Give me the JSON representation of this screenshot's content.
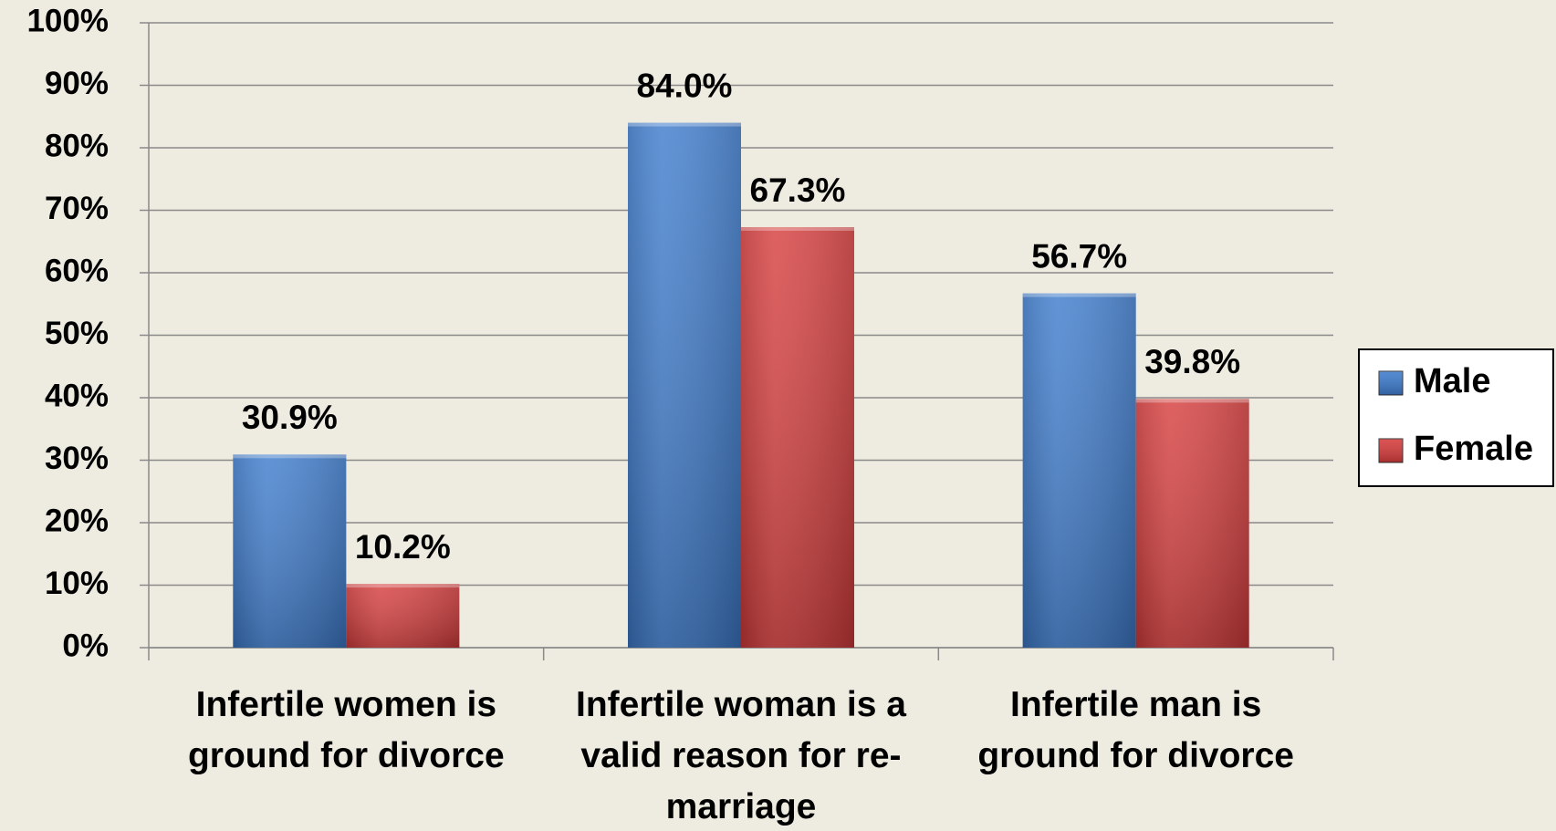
{
  "chart_data": {
    "type": "bar",
    "categories": [
      "Infertile women is ground for divorce",
      "Infertile woman is a valid reason for re-marriage",
      "Infertile man is ground for divorce"
    ],
    "series": [
      {
        "name": "Male",
        "color": "#3d7bcc",
        "values": [
          30.9,
          84.0,
          56.7
        ],
        "value_labels": [
          "30.9%",
          "84.0%",
          "56.7%"
        ]
      },
      {
        "name": "Female",
        "color": "#d63c3c",
        "values": [
          10.2,
          67.3,
          39.8
        ],
        "value_labels": [
          "10.2%",
          "67.3%",
          "39.8%"
        ]
      }
    ],
    "ylim": [
      0,
      100
    ],
    "yticks": [
      {
        "value": 0,
        "label": "0%"
      },
      {
        "value": 10,
        "label": "10%"
      },
      {
        "value": 20,
        "label": "20%"
      },
      {
        "value": 30,
        "label": "30%"
      },
      {
        "value": 40,
        "label": "40%"
      },
      {
        "value": 50,
        "label": "50%"
      },
      {
        "value": 60,
        "label": "60%"
      },
      {
        "value": 70,
        "label": "70%"
      },
      {
        "value": 80,
        "label": "80%"
      },
      {
        "value": 90,
        "label": "90%"
      },
      {
        "value": 100,
        "label": "100%"
      }
    ],
    "grid": true,
    "legend": "right"
  }
}
